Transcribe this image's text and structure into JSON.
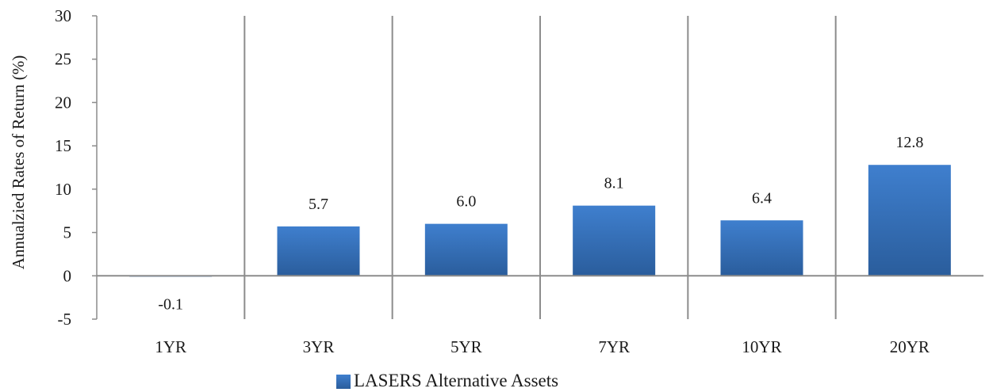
{
  "chart_data": {
    "type": "bar",
    "title": "",
    "xlabel": "",
    "ylabel": "Annualzied Rates of Return (%)",
    "categories": [
      "1YR",
      "3YR",
      "5YR",
      "7YR",
      "10YR",
      "20YR"
    ],
    "series": [
      {
        "name": "LASERS Alternative Assets",
        "values": [
          -0.1,
          5.7,
          6.0,
          8.1,
          6.4,
          12.8
        ],
        "labels": [
          "-0.1",
          "5.7",
          "6.0",
          "8.1",
          "6.4",
          "12.8"
        ]
      }
    ],
    "ylim": [
      -5,
      30
    ],
    "yticks": [
      "-5",
      "0",
      "5",
      "10",
      "15",
      "20",
      "25",
      "30"
    ],
    "grid": "vertical separators between categories",
    "legend": "bottom-center",
    "colors": {
      "bar_top": "#3f7fce",
      "bar_bottom": "#2a5d9c",
      "axis": "#8c8c8c",
      "text": "#1a1a1a"
    }
  }
}
